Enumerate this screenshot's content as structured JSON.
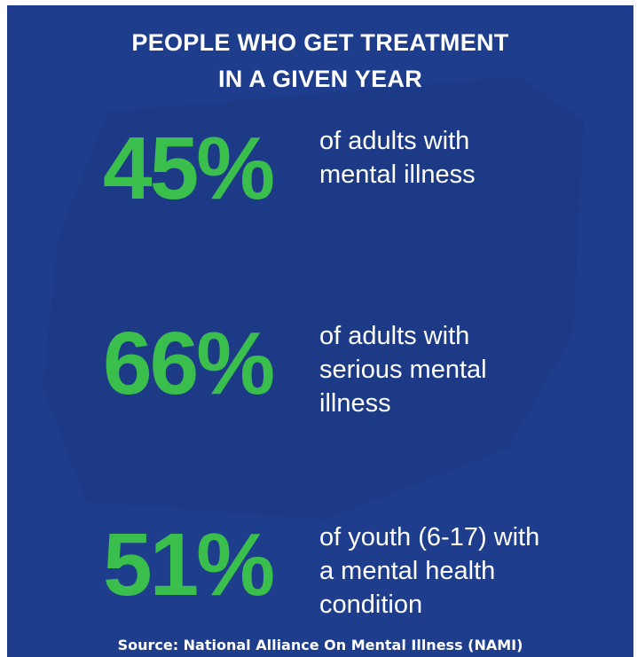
{
  "colors": {
    "background": "#1e3d8c",
    "accent": "#3bbf4c",
    "text": "#ffffff"
  },
  "headline": {
    "line1": "PEOPLE WHO GET TREATMENT",
    "line2": "IN A GIVEN YEAR"
  },
  "stats": [
    {
      "value": "45%",
      "description": "of adults with\nmental illness"
    },
    {
      "value": "66%",
      "description": "of adults with\nserious mental\nillness"
    },
    {
      "value": "51%",
      "description": "of youth (6-17) with\na mental health\ncondition"
    }
  ],
  "source": "Source: National Alliance On Mental Illness (NAMI)"
}
